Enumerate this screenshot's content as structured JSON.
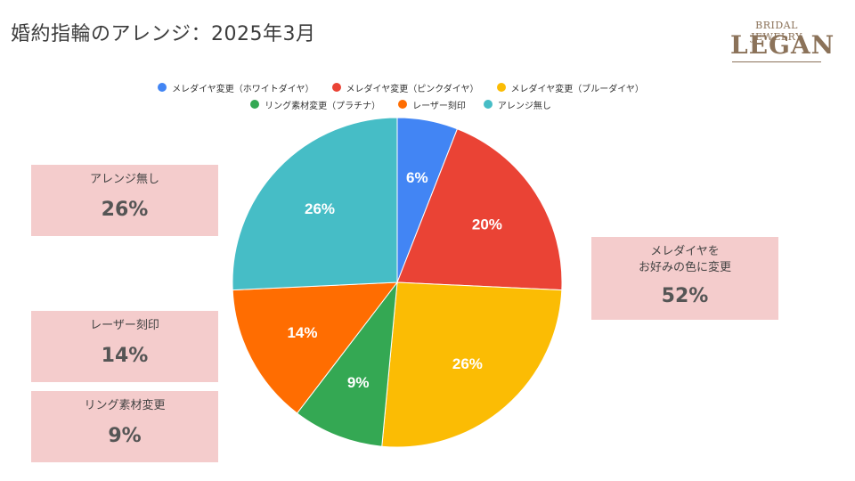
{
  "title": "婚約指輪のアレンジ：2025年3月",
  "logo": {
    "top_text": "BRIDAL JEWELRY",
    "main_text": "LEGAN"
  },
  "chart_data": {
    "type": "pie",
    "series": [
      {
        "name": "メレダイヤ変更（ホワイトダイヤ）",
        "value": 6,
        "label": "6%",
        "color": "#4285f4"
      },
      {
        "name": "メレダイヤ変更（ピンクダイヤ）",
        "value": 20,
        "label": "20%",
        "color": "#ea4335"
      },
      {
        "name": "メレダイヤ変更（ブルーダイヤ）",
        "value": 26,
        "label": "26%",
        "color": "#fbbc04"
      },
      {
        "name": "リング素材変更（プラチナ）",
        "value": 9,
        "label": "9%",
        "color": "#34a853"
      },
      {
        "name": "レーザー刻印",
        "value": 14,
        "label": "14%",
        "color": "#ff6d01"
      },
      {
        "name": "アレンジ無し",
        "value": 26,
        "label": "26%",
        "color": "#46bdc6"
      }
    ],
    "legend_position": "top"
  },
  "callouts": {
    "arrange": {
      "label": "アレンジ無し",
      "value": "26%"
    },
    "laser": {
      "label": "レーザー刻印",
      "value": "14%"
    },
    "ring": {
      "label": "リング素材変更",
      "value": "9%"
    },
    "melee": {
      "label": "メレダイヤを\nお好みの色に変更",
      "value": "52%"
    }
  }
}
